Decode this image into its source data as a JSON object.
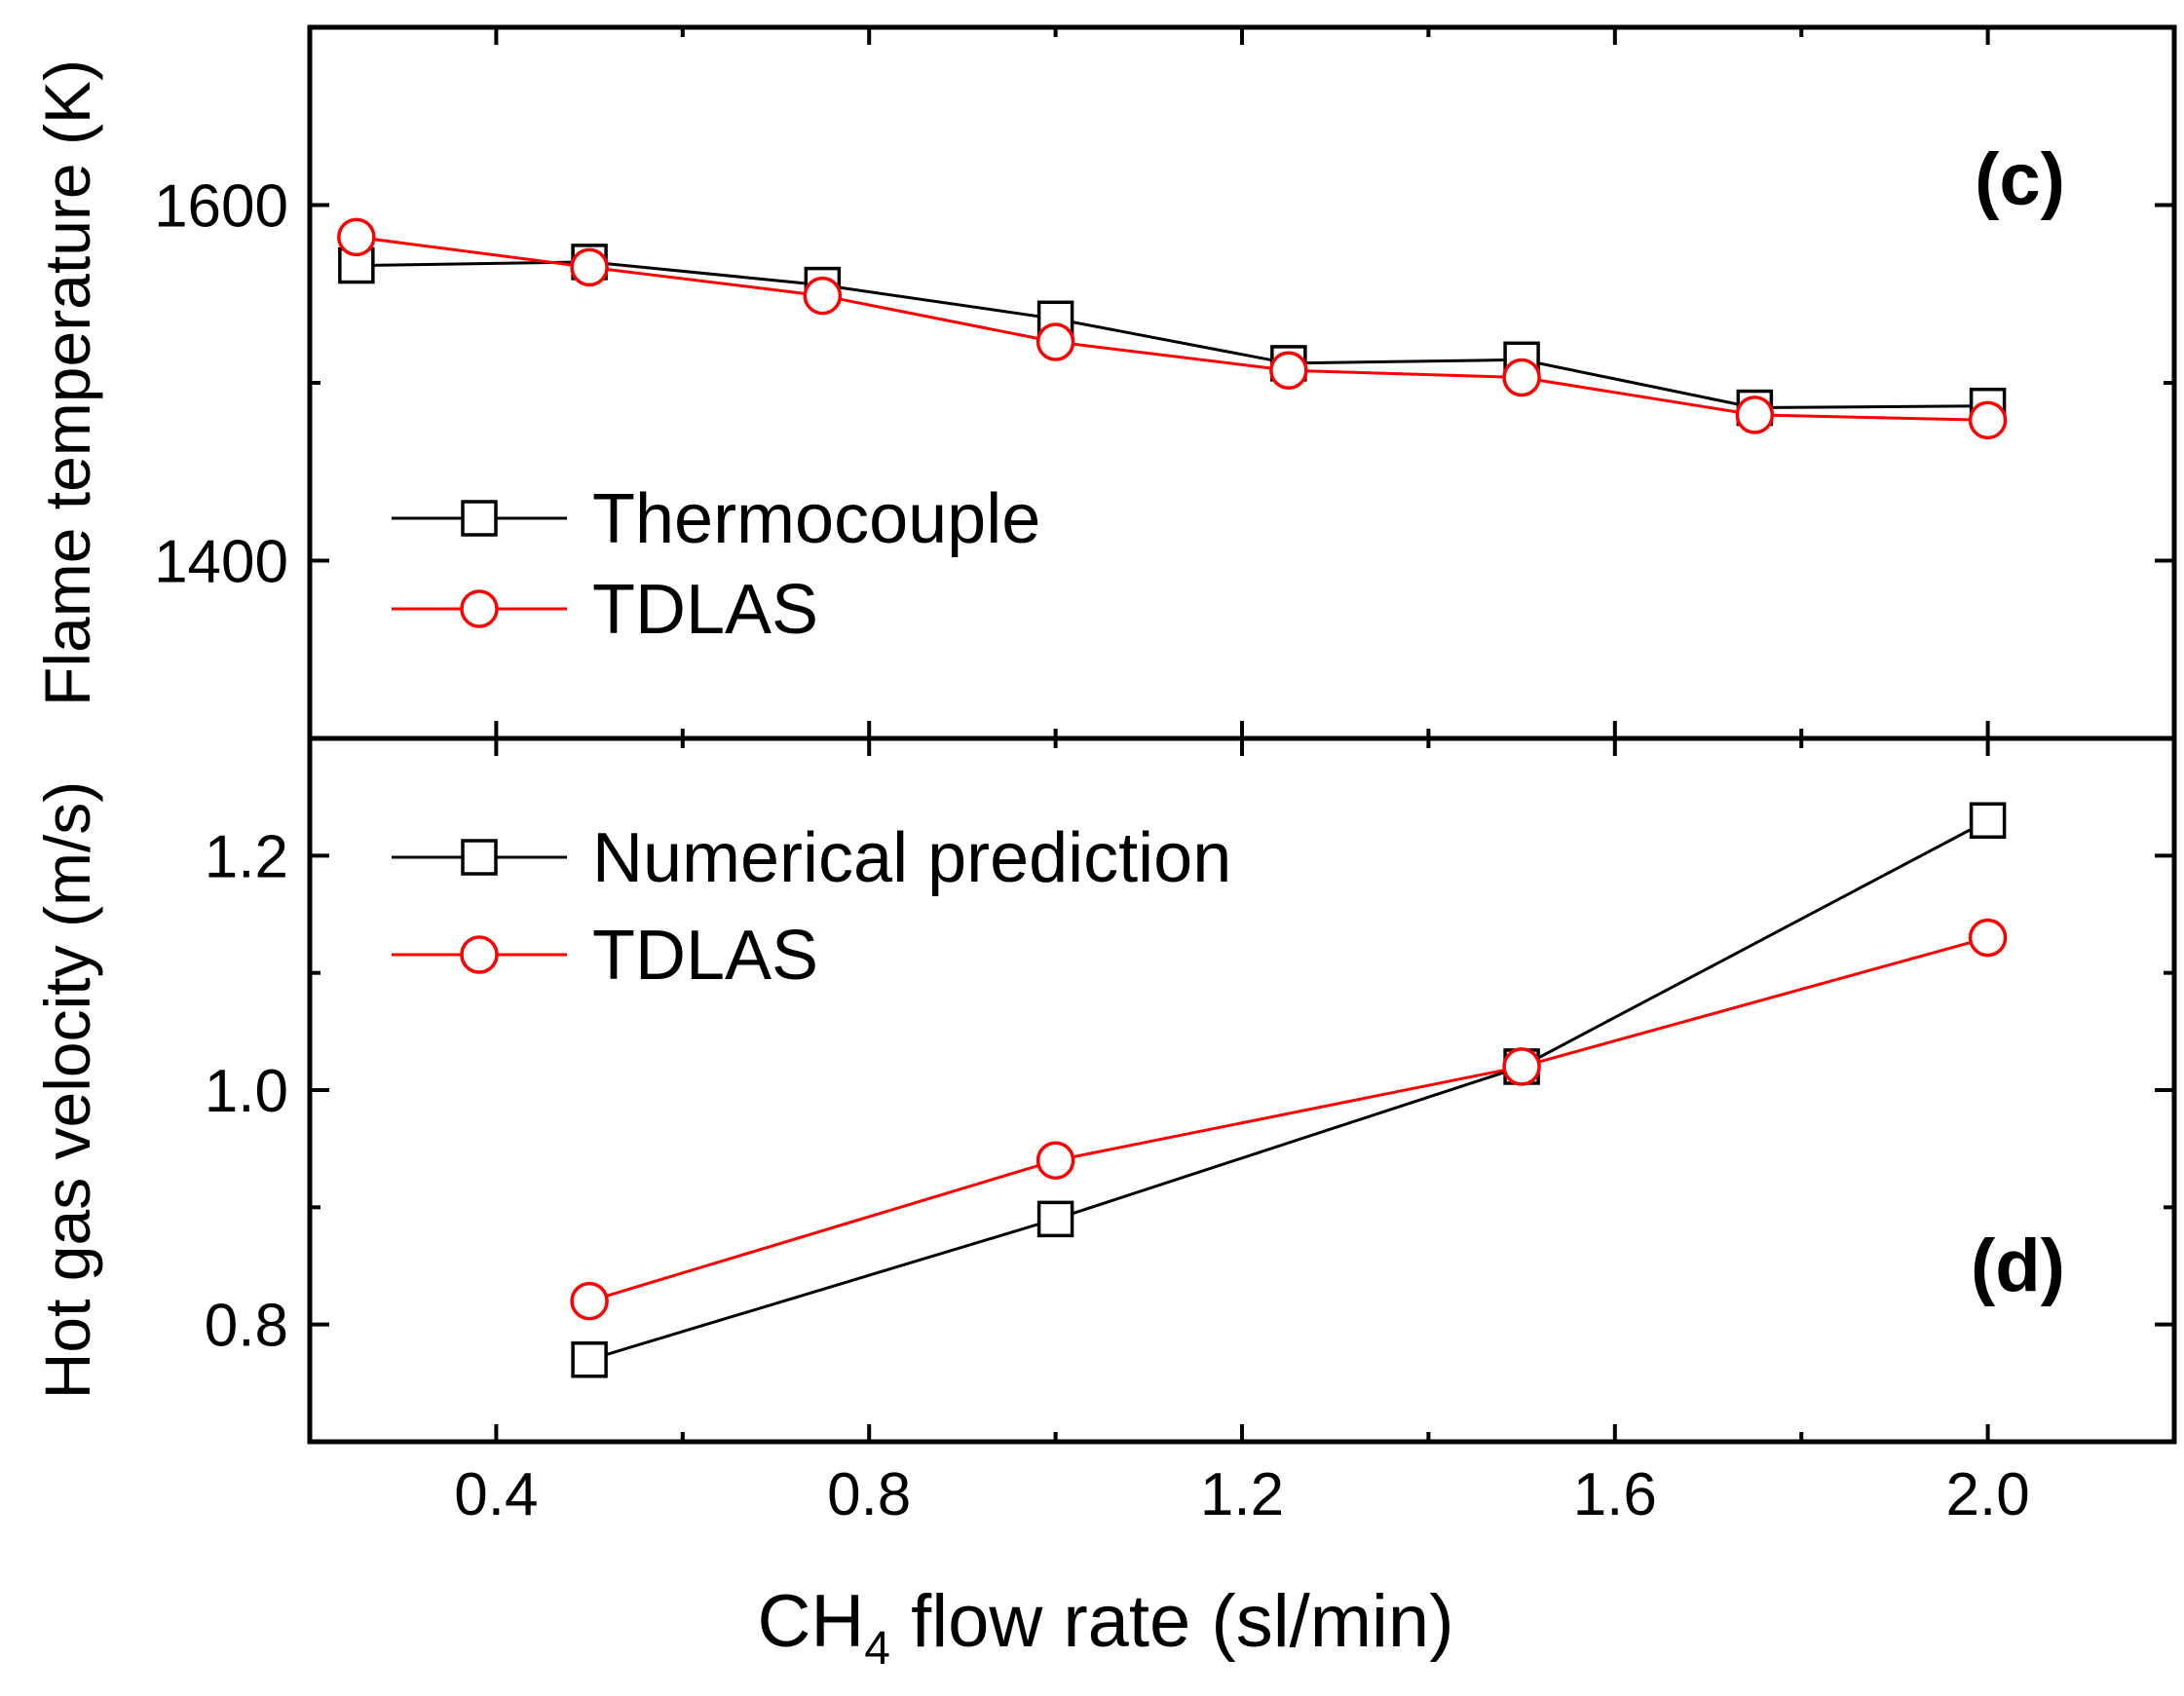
{
  "colors": {
    "black": "#000000",
    "red": "#ff0000",
    "background": "#ffffff"
  },
  "chart_data": [
    {
      "type": "line",
      "panel_label": "(c)",
      "ylabel": "Flame temperature (K)",
      "xlim": [
        0.2,
        2.2
      ],
      "ylim": [
        1300,
        1700
      ],
      "x_ticks": [
        0.4,
        0.8,
        1.2,
        1.6,
        2.0
      ],
      "x_tick_labels": [
        "0.4",
        "0.8",
        "1.2",
        "1.6",
        "2.0"
      ],
      "y_ticks": [
        1400,
        1600
      ],
      "y_tick_labels": [
        "1400",
        "1600"
      ],
      "grid": false,
      "legend_position": "middle-left",
      "series": [
        {
          "name": "Thermocouple",
          "color": "#000000",
          "marker": "square",
          "x": [
            0.25,
            0.5,
            0.75,
            1.0,
            1.25,
            1.5,
            1.75,
            2.0
          ],
          "y": [
            1566,
            1568,
            1555,
            1536,
            1511,
            1513,
            1486,
            1487
          ]
        },
        {
          "name": "TDLAS",
          "color": "#ff0000",
          "marker": "circle",
          "x": [
            0.25,
            0.5,
            0.75,
            1.0,
            1.25,
            1.5,
            1.75,
            2.0
          ],
          "y": [
            1582,
            1565,
            1549,
            1523,
            1507,
            1503,
            1482,
            1479
          ]
        }
      ]
    },
    {
      "type": "line",
      "panel_label": "(d)",
      "ylabel": "Hot gas velocity (m/s)",
      "xlim": [
        0.2,
        2.2
      ],
      "ylim": [
        0.7,
        1.3
      ],
      "x_ticks": [
        0.4,
        0.8,
        1.2,
        1.6,
        2.0
      ],
      "x_tick_labels": [
        "0.4",
        "0.8",
        "1.2",
        "1.6",
        "2.0"
      ],
      "y_ticks": [
        0.8,
        1.0,
        1.2
      ],
      "y_tick_labels": [
        "0.8",
        "1.0",
        "1.2"
      ],
      "grid": false,
      "legend_position": "top-left",
      "series": [
        {
          "name": "Numerical prediction",
          "color": "#000000",
          "marker": "square",
          "x": [
            0.5,
            1.0,
            1.5,
            2.0
          ],
          "y": [
            0.77,
            0.89,
            1.02,
            1.23
          ]
        },
        {
          "name": "TDLAS",
          "color": "#ff0000",
          "marker": "circle",
          "x": [
            0.5,
            1.0,
            1.5,
            2.0
          ],
          "y": [
            0.82,
            0.94,
            1.02,
            1.13
          ]
        }
      ]
    }
  ],
  "xlabel": {
    "main": "CH",
    "subscript": "4",
    "rest": " flow rate (sl/min)"
  }
}
